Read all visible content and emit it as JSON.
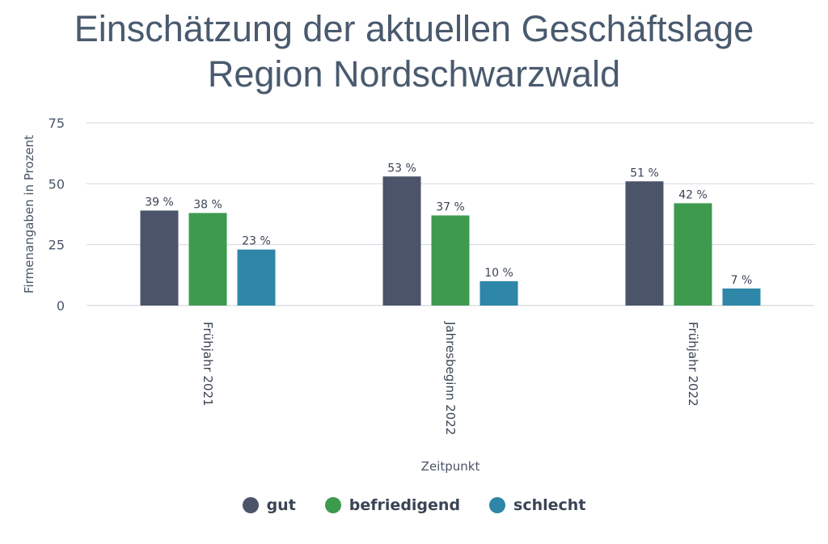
{
  "chart_data": {
    "type": "bar",
    "title": "Einschätzung der aktuellen Geschäftslage",
    "subtitle": "Region Nordschwarzwald",
    "xlabel": "Zeitpunkt",
    "ylabel": "Firmenangaben in Prozent",
    "ylim": [
      0,
      75
    ],
    "yticks": [
      0,
      25,
      50,
      75
    ],
    "grid": true,
    "legend_position": "bottom",
    "categories": [
      "Frühjahr 2021",
      "Jahresbeginn 2022",
      "Frühjahr 2022"
    ],
    "series": [
      {
        "name": "gut",
        "color": "#4b5469",
        "values": [
          39,
          53,
          51
        ],
        "labels": [
          "39 %",
          "53 %",
          "51 %"
        ]
      },
      {
        "name": "befriedigend",
        "color": "#3d9a4f",
        "values": [
          38,
          37,
          42
        ],
        "labels": [
          "38 %",
          "37 %",
          "42 %"
        ]
      },
      {
        "name": "schlecht",
        "color": "#2e86a8",
        "values": [
          23,
          10,
          7
        ],
        "labels": [
          "23 %",
          "10 %",
          "7 %"
        ]
      }
    ]
  }
}
